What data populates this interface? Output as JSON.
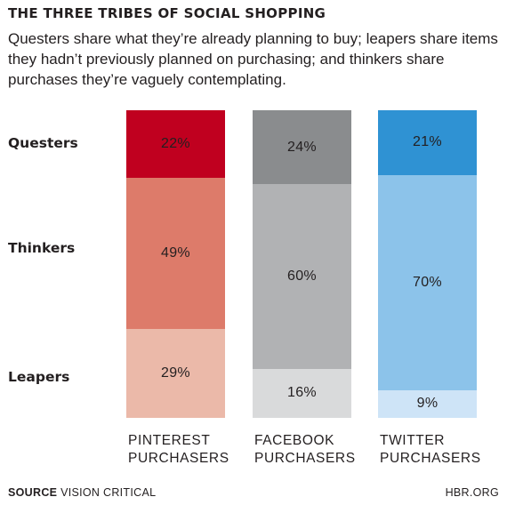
{
  "title": "THE THREE TRIBES OF SOCIAL SHOPPING",
  "subtitle": "Questers share what they’re already planning to buy; leapers share items they hadn’t previously planned on purchasing; and thinkers share purchases they’re vaguely contemplating.",
  "source_label": "SOURCE",
  "source_text": "VISION CRITICAL",
  "credit": "HBR.ORG",
  "colors": {
    "pinterest": [
      "#c0001f",
      "#dd7b6a",
      "#ebb9a9"
    ],
    "facebook": [
      "#8a8c8e",
      "#b1b2b4",
      "#d9dadb"
    ],
    "twitter": [
      "#2f92d3",
      "#8cc3ea",
      "#cee4f7"
    ]
  },
  "chart_data": {
    "type": "bar",
    "stacked": true,
    "orientation": "vertical",
    "categories": [
      [
        "PINTEREST",
        "PURCHASERS"
      ],
      [
        "FACEBOOK",
        "PURCHASERS"
      ],
      [
        "TWITTER",
        "PURCHASERS"
      ]
    ],
    "series": [
      {
        "name": "Questers",
        "values": [
          22,
          24,
          21
        ],
        "labels": [
          "22%",
          "24%",
          "21%"
        ]
      },
      {
        "name": "Thinkers",
        "values": [
          49,
          60,
          70
        ],
        "labels": [
          "49%",
          "60%",
          "70%"
        ]
      },
      {
        "name": "Leapers",
        "values": [
          29,
          16,
          9
        ],
        "labels": [
          "29%",
          "16%",
          "9%"
        ]
      }
    ],
    "unit": "%",
    "ylim": [
      0,
      100
    ],
    "grid": false
  }
}
